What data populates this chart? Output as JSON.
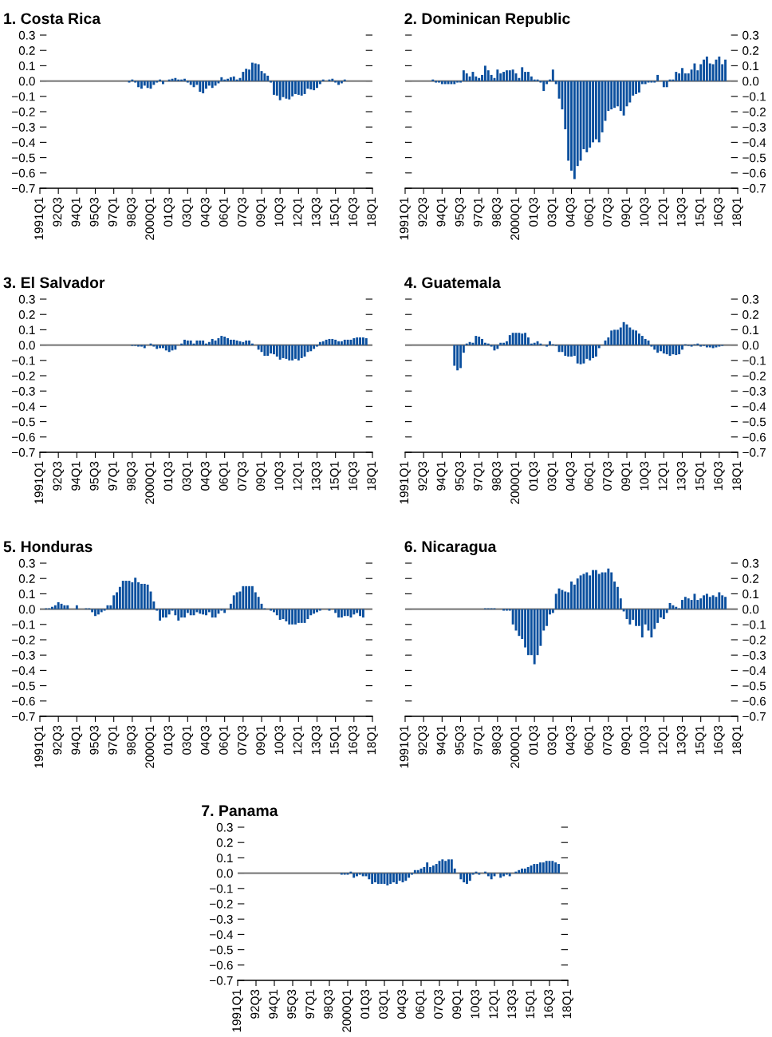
{
  "chart_data": [
    {
      "type": "bar",
      "title": "1. Costa Rica",
      "categories": [
        "1991Q1",
        null,
        null,
        null,
        null,
        null,
        "92Q3",
        null,
        null,
        null,
        null,
        null,
        "94Q1",
        null,
        null,
        null,
        null,
        null,
        "95Q3",
        null,
        null,
        null,
        null,
        null,
        "97Q1",
        null,
        null,
        null,
        null,
        null,
        "98Q3",
        null,
        null,
        null,
        null,
        null,
        "2000Q1",
        null,
        null,
        null,
        null,
        null,
        "01Q3",
        null,
        null,
        null,
        null,
        null,
        "03Q1",
        null,
        null,
        null,
        null,
        null,
        "04Q3",
        null,
        null,
        null,
        null,
        null,
        "06Q1",
        null,
        null,
        null,
        null,
        null,
        "07Q3",
        null,
        null,
        null,
        null,
        null,
        "09Q1",
        null,
        null,
        null,
        null,
        null,
        "10Q3",
        null,
        null,
        null,
        null,
        null,
        "12Q1",
        null,
        null,
        null,
        null,
        null,
        "13Q3",
        null,
        null,
        null,
        null,
        null,
        "15Q1",
        null,
        null,
        null,
        null,
        null,
        "16Q3",
        null,
        null,
        null,
        null,
        null,
        "18Q1"
      ],
      "series": [
        {
          "color": "#0a4f9e",
          "values": [
            null,
            null,
            null,
            null,
            null,
            null,
            null,
            null,
            null,
            null,
            null,
            null,
            null,
            null,
            null,
            null,
            null,
            null,
            null,
            null,
            null,
            null,
            null,
            null,
            null,
            null,
            null,
            null,
            null,
            -0.01,
            0.01,
            -0.01,
            -0.04,
            -0.05,
            -0.03,
            -0.045,
            -0.05,
            -0.025,
            -0.01,
            0.01,
            -0.02,
            0.0,
            0.01,
            0.015,
            0.02,
            0.01,
            0.01,
            0.015,
            -0.01,
            -0.025,
            -0.04,
            -0.025,
            -0.07,
            -0.08,
            -0.05,
            -0.03,
            -0.045,
            -0.03,
            -0.015,
            0.025,
            0.01,
            0.015,
            0.025,
            0.03,
            0.01,
            0.02,
            0.06,
            0.08,
            0.075,
            0.12,
            0.115,
            0.11,
            0.065,
            0.05,
            0.035,
            -0.01,
            -0.09,
            -0.095,
            -0.125,
            -0.105,
            -0.115,
            -0.12,
            -0.1,
            -0.085,
            -0.09,
            -0.095,
            -0.085,
            -0.05,
            -0.055,
            -0.06,
            -0.045,
            -0.02,
            0.01,
            0.0,
            0.01,
            0.015,
            -0.01,
            -0.025,
            -0.015,
            0.01,
            null,
            null,
            null,
            null,
            null,
            null,
            null,
            null,
            null
          ]
        }
      ],
      "ylim": [
        -0.7,
        0.3
      ],
      "yticks": [
        {
          "value": 0.3,
          "label": "0.3"
        },
        {
          "value": 0.2,
          "label": "0.2"
        },
        {
          "value": 0.1,
          "label": "0.1"
        },
        {
          "value": 0.0,
          "label": "0.0"
        },
        {
          "value": -0.1,
          "label": "−0.1"
        },
        {
          "value": -0.2,
          "label": "−0.2"
        },
        {
          "value": -0.3,
          "label": "−0.3"
        },
        {
          "value": -0.4,
          "label": "−0.4"
        },
        {
          "value": -0.5,
          "label": "−0.5"
        },
        {
          "value": -0.6,
          "label": "−0.6"
        },
        {
          "value": -0.7,
          "label": "−0.7"
        }
      ],
      "ref_lines": [
        {
          "axis": "y",
          "value": 0,
          "color": "#808080"
        }
      ]
    },
    {
      "type": "bar",
      "title": "2. Dominican Republic",
      "categories": [
        "1991Q1",
        null,
        null,
        null,
        null,
        null,
        "92Q3",
        null,
        null,
        null,
        null,
        null,
        "94Q1",
        null,
        null,
        null,
        null,
        null,
        "95Q3",
        null,
        null,
        null,
        null,
        null,
        "97Q1",
        null,
        null,
        null,
        null,
        null,
        "98Q3",
        null,
        null,
        null,
        null,
        null,
        "2000Q1",
        null,
        null,
        null,
        null,
        null,
        "01Q3",
        null,
        null,
        null,
        null,
        null,
        "03Q1",
        null,
        null,
        null,
        null,
        null,
        "04Q3",
        null,
        null,
        null,
        null,
        null,
        "06Q1",
        null,
        null,
        null,
        null,
        null,
        "07Q3",
        null,
        null,
        null,
        null,
        null,
        "09Q1",
        null,
        null,
        null,
        null,
        null,
        "10Q3",
        null,
        null,
        null,
        null,
        null,
        "12Q1",
        null,
        null,
        null,
        null,
        null,
        "13Q3",
        null,
        null,
        null,
        null,
        null,
        "15Q1",
        null,
        null,
        null,
        null,
        null,
        "16Q3",
        null,
        null,
        null,
        null,
        null,
        "18Q1"
      ],
      "series": [
        {
          "color": "#0a4f9e",
          "axis": "y2",
          "values": [
            null,
            null,
            null,
            null,
            null,
            null,
            null,
            null,
            null,
            0.01,
            -0.01,
            -0.01,
            -0.02,
            -0.02,
            -0.02,
            -0.02,
            -0.02,
            -0.01,
            -0.01,
            0.07,
            0.05,
            0.03,
            0.06,
            0.03,
            0.02,
            0.04,
            0.1,
            0.07,
            0.04,
            0.02,
            0.075,
            0.05,
            0.06,
            0.07,
            0.07,
            0.075,
            0.05,
            0.02,
            0.09,
            0.06,
            0.06,
            0.03,
            0.01,
            0.01,
            -0.01,
            -0.065,
            -0.02,
            0.01,
            0.075,
            -0.02,
            -0.115,
            -0.185,
            -0.315,
            -0.52,
            -0.585,
            -0.64,
            -0.555,
            -0.52,
            -0.445,
            -0.465,
            -0.435,
            -0.4,
            -0.38,
            -0.4,
            -0.335,
            -0.26,
            -0.195,
            -0.185,
            -0.175,
            -0.165,
            -0.195,
            -0.225,
            -0.165,
            -0.14,
            -0.095,
            -0.085,
            -0.075,
            -0.02,
            -0.02,
            -0.01,
            -0.01,
            -0.01,
            0.04,
            0.0,
            -0.04,
            -0.04,
            0.01,
            0.01,
            0.06,
            0.05,
            0.085,
            0.05,
            0.05,
            0.075,
            0.115,
            0.07,
            0.11,
            0.14,
            0.16,
            0.115,
            0.11,
            0.14,
            0.16,
            0.11,
            0.14,
            null,
            null,
            null,
            null
          ]
        }
      ],
      "y2lim": [
        -0.7,
        0.3
      ],
      "y2ticks": [
        {
          "value": 0.3,
          "label": "0.3"
        },
        {
          "value": 0.2,
          "label": "0.2"
        },
        {
          "value": 0.1,
          "label": "0.1"
        },
        {
          "value": 0.0,
          "label": "0.0"
        },
        {
          "value": -0.1,
          "label": "−0.1"
        },
        {
          "value": -0.2,
          "label": "−0.2"
        },
        {
          "value": -0.3,
          "label": "−0.3"
        },
        {
          "value": -0.4,
          "label": "−0.4"
        },
        {
          "value": -0.5,
          "label": "−0.5"
        },
        {
          "value": -0.6,
          "label": "−0.6"
        },
        {
          "value": -0.7,
          "label": "−0.7"
        }
      ],
      "ref_lines": [
        {
          "axis": "y2",
          "value": 0,
          "color": "#808080"
        }
      ]
    },
    {
      "type": "bar",
      "title": "3. El Salvador",
      "categories": [
        "1991Q1",
        null,
        null,
        null,
        null,
        null,
        "92Q3",
        null,
        null,
        null,
        null,
        null,
        "94Q1",
        null,
        null,
        null,
        null,
        null,
        "95Q3",
        null,
        null,
        null,
        null,
        null,
        "97Q1",
        null,
        null,
        null,
        null,
        null,
        "98Q3",
        null,
        null,
        null,
        null,
        null,
        "2000Q1",
        null,
        null,
        null,
        null,
        null,
        "01Q3",
        null,
        null,
        null,
        null,
        null,
        "03Q1",
        null,
        null,
        null,
        null,
        null,
        "04Q3",
        null,
        null,
        null,
        null,
        null,
        "06Q1",
        null,
        null,
        null,
        null,
        null,
        "07Q3",
        null,
        null,
        null,
        null,
        null,
        "09Q1",
        null,
        null,
        null,
        null,
        null,
        "10Q3",
        null,
        null,
        null,
        null,
        null,
        "12Q1",
        null,
        null,
        null,
        null,
        null,
        "13Q3",
        null,
        null,
        null,
        null,
        null,
        "15Q1",
        null,
        null,
        null,
        null,
        null,
        "16Q3",
        null,
        null,
        null,
        null,
        null,
        "18Q1"
      ],
      "series": [
        {
          "color": "#0a4f9e",
          "values": [
            null,
            null,
            null,
            null,
            null,
            null,
            null,
            null,
            null,
            null,
            null,
            null,
            null,
            null,
            null,
            null,
            null,
            null,
            null,
            null,
            null,
            null,
            null,
            null,
            null,
            null,
            null,
            null,
            null,
            null,
            -0.005,
            -0.005,
            -0.01,
            -0.01,
            -0.02,
            0.0,
            0.01,
            -0.01,
            -0.025,
            -0.02,
            -0.02,
            -0.035,
            -0.045,
            -0.035,
            -0.03,
            0.0,
            0.01,
            0.035,
            0.03,
            0.03,
            0.01,
            0.03,
            0.03,
            0.03,
            0.01,
            0.02,
            0.04,
            0.03,
            0.045,
            0.06,
            0.055,
            0.045,
            0.035,
            0.035,
            0.03,
            0.025,
            0.02,
            0.03,
            0.03,
            0.01,
            0.0,
            -0.03,
            -0.045,
            -0.07,
            -0.07,
            -0.055,
            -0.06,
            -0.075,
            -0.095,
            -0.085,
            -0.09,
            -0.1,
            -0.1,
            -0.09,
            -0.1,
            -0.085,
            -0.075,
            -0.045,
            -0.04,
            -0.025,
            -0.01,
            0.02,
            0.025,
            0.035,
            0.04,
            0.04,
            0.035,
            0.025,
            0.025,
            0.035,
            0.035,
            0.035,
            0.045,
            0.05,
            0.05,
            0.05,
            0.045,
            null,
            null
          ]
        }
      ],
      "ylim": [
        -0.7,
        0.3
      ],
      "yticks": [
        {
          "value": 0.3,
          "label": "0.3"
        },
        {
          "value": 0.2,
          "label": "0.2"
        },
        {
          "value": 0.1,
          "label": "0.1"
        },
        {
          "value": 0.0,
          "label": "0.0"
        },
        {
          "value": -0.1,
          "label": "−0.1"
        },
        {
          "value": -0.2,
          "label": "−0.2"
        },
        {
          "value": -0.3,
          "label": "−0.3"
        },
        {
          "value": -0.4,
          "label": "−0.4"
        },
        {
          "value": -0.5,
          "label": "−0.5"
        },
        {
          "value": -0.6,
          "label": "−0.6"
        },
        {
          "value": -0.7,
          "label": "−0.7"
        }
      ],
      "ref_lines": [
        {
          "axis": "y",
          "value": 0,
          "color": "#808080"
        }
      ]
    },
    {
      "type": "bar",
      "title": "4. Guatemala",
      "categories": [
        "1991Q1",
        null,
        null,
        null,
        null,
        null,
        "92Q3",
        null,
        null,
        null,
        null,
        null,
        "94Q1",
        null,
        null,
        null,
        null,
        null,
        "95Q3",
        null,
        null,
        null,
        null,
        null,
        "97Q1",
        null,
        null,
        null,
        null,
        null,
        "98Q3",
        null,
        null,
        null,
        null,
        null,
        "2000Q1",
        null,
        null,
        null,
        null,
        null,
        "01Q3",
        null,
        null,
        null,
        null,
        null,
        "03Q1",
        null,
        null,
        null,
        null,
        null,
        "04Q3",
        null,
        null,
        null,
        null,
        null,
        "06Q1",
        null,
        null,
        null,
        null,
        null,
        "07Q3",
        null,
        null,
        null,
        null,
        null,
        "09Q1",
        null,
        null,
        null,
        null,
        null,
        "10Q3",
        null,
        null,
        null,
        null,
        null,
        "12Q1",
        null,
        null,
        null,
        null,
        null,
        "13Q3",
        null,
        null,
        null,
        null,
        null,
        "15Q1",
        null,
        null,
        null,
        null,
        null,
        "16Q3",
        null,
        null,
        null,
        null,
        null,
        "18Q1"
      ],
      "series": [
        {
          "color": "#0a4f9e",
          "axis": "y2",
          "values": [
            null,
            null,
            null,
            null,
            null,
            null,
            null,
            null,
            null,
            null,
            null,
            null,
            null,
            null,
            null,
            null,
            -0.135,
            -0.165,
            -0.15,
            -0.05,
            0.01,
            0.02,
            0.015,
            0.06,
            0.055,
            0.04,
            0.015,
            0.01,
            -0.01,
            -0.035,
            -0.025,
            0.015,
            0.015,
            0.025,
            0.065,
            0.08,
            0.08,
            0.08,
            0.075,
            0.08,
            0.05,
            0.01,
            0.015,
            0.025,
            0.01,
            0.0,
            -0.01,
            0.025,
            0.005,
            -0.005,
            -0.045,
            -0.045,
            -0.07,
            -0.075,
            -0.075,
            -0.07,
            -0.12,
            -0.125,
            -0.12,
            -0.09,
            -0.1,
            -0.085,
            -0.075,
            -0.02,
            0.0,
            0.03,
            0.05,
            0.095,
            0.1,
            0.1,
            0.115,
            0.15,
            0.135,
            0.115,
            0.1,
            0.095,
            0.075,
            0.06,
            0.04,
            0.03,
            -0.01,
            -0.03,
            -0.05,
            -0.04,
            -0.055,
            -0.06,
            -0.07,
            -0.06,
            -0.065,
            -0.06,
            -0.03,
            0.005,
            -0.005,
            -0.01,
            0.005,
            0.01,
            -0.01,
            -0.005,
            -0.015,
            -0.015,
            -0.02,
            -0.015,
            -0.01,
            -0.005,
            null,
            null,
            null,
            null,
            null
          ]
        }
      ],
      "y2lim": [
        -0.7,
        0.3
      ],
      "y2ticks": [
        {
          "value": 0.3,
          "label": "0.3"
        },
        {
          "value": 0.2,
          "label": "0.2"
        },
        {
          "value": 0.1,
          "label": "0.1"
        },
        {
          "value": 0.0,
          "label": "0.0"
        },
        {
          "value": -0.1,
          "label": "−0.1"
        },
        {
          "value": -0.2,
          "label": "−0.2"
        },
        {
          "value": -0.3,
          "label": "−0.3"
        },
        {
          "value": -0.4,
          "label": "−0.4"
        },
        {
          "value": -0.5,
          "label": "−0.5"
        },
        {
          "value": -0.6,
          "label": "−0.6"
        },
        {
          "value": -0.7,
          "label": "−0.7"
        }
      ],
      "ref_lines": [
        {
          "axis": "y2",
          "value": 0,
          "color": "#808080"
        }
      ]
    },
    {
      "type": "bar",
      "title": "5. Honduras",
      "categories": [
        "1991Q1",
        null,
        null,
        null,
        null,
        null,
        "92Q3",
        null,
        null,
        null,
        null,
        null,
        "94Q1",
        null,
        null,
        null,
        null,
        null,
        "95Q3",
        null,
        null,
        null,
        null,
        null,
        "97Q1",
        null,
        null,
        null,
        null,
        null,
        "98Q3",
        null,
        null,
        null,
        null,
        null,
        "2000Q1",
        null,
        null,
        null,
        null,
        null,
        "01Q3",
        null,
        null,
        null,
        null,
        null,
        "03Q1",
        null,
        null,
        null,
        null,
        null,
        "04Q3",
        null,
        null,
        null,
        null,
        null,
        "06Q1",
        null,
        null,
        null,
        null,
        null,
        "07Q3",
        null,
        null,
        null,
        null,
        null,
        "09Q1",
        null,
        null,
        null,
        null,
        null,
        "10Q3",
        null,
        null,
        null,
        null,
        null,
        "12Q1",
        null,
        null,
        null,
        null,
        null,
        "13Q3",
        null,
        null,
        null,
        null,
        null,
        "15Q1",
        null,
        null,
        null,
        null,
        null,
        "16Q3",
        null,
        null,
        null,
        null,
        null,
        "18Q1"
      ],
      "series": [
        {
          "color": "#0a4f9e",
          "values": [
            null,
            null,
            0.005,
            0.005,
            0.015,
            0.025,
            0.045,
            0.035,
            0.025,
            0.025,
            0.0,
            0.0,
            0.025,
            0.0,
            0.0,
            0.005,
            0.005,
            -0.02,
            -0.045,
            -0.035,
            -0.02,
            -0.01,
            0.025,
            0.025,
            0.09,
            0.11,
            0.145,
            0.185,
            0.185,
            0.185,
            0.175,
            0.205,
            0.175,
            0.165,
            0.165,
            0.16,
            0.115,
            0.05,
            -0.01,
            -0.075,
            -0.055,
            -0.055,
            -0.035,
            -0.01,
            -0.04,
            -0.075,
            -0.055,
            -0.055,
            -0.025,
            -0.04,
            -0.04,
            -0.02,
            -0.03,
            -0.035,
            -0.04,
            -0.02,
            -0.055,
            -0.055,
            -0.03,
            -0.01,
            -0.025,
            0.0,
            0.035,
            0.09,
            0.11,
            0.115,
            0.15,
            0.15,
            0.15,
            0.15,
            0.11,
            0.08,
            0.035,
            0.005,
            0.0,
            -0.01,
            -0.02,
            -0.04,
            -0.07,
            -0.065,
            -0.08,
            -0.1,
            -0.1,
            -0.1,
            -0.09,
            -0.09,
            -0.09,
            -0.065,
            -0.04,
            -0.03,
            -0.02,
            -0.01,
            0.0,
            0.0,
            -0.01,
            0.0,
            -0.025,
            -0.055,
            -0.055,
            -0.045,
            -0.045,
            -0.055,
            -0.035,
            -0.025,
            -0.045,
            -0.055,
            null,
            null,
            null
          ]
        }
      ],
      "ylim": [
        -0.7,
        0.3
      ],
      "yticks": [
        {
          "value": 0.3,
          "label": "0.3"
        },
        {
          "value": 0.2,
          "label": "0.2"
        },
        {
          "value": 0.1,
          "label": "0.1"
        },
        {
          "value": 0.0,
          "label": "0.0"
        },
        {
          "value": -0.1,
          "label": "−0.1"
        },
        {
          "value": -0.2,
          "label": "−0.2"
        },
        {
          "value": -0.3,
          "label": "−0.3"
        },
        {
          "value": -0.4,
          "label": "−0.4"
        },
        {
          "value": -0.5,
          "label": "−0.5"
        },
        {
          "value": -0.6,
          "label": "−0.6"
        },
        {
          "value": -0.7,
          "label": "−0.7"
        }
      ],
      "ref_lines": [
        {
          "axis": "y",
          "value": 0,
          "color": "#808080"
        }
      ]
    },
    {
      "type": "bar",
      "title": "6. Nicaragua",
      "categories": [
        "1991Q1",
        null,
        null,
        null,
        null,
        null,
        "92Q3",
        null,
        null,
        null,
        null,
        null,
        "94Q1",
        null,
        null,
        null,
        null,
        null,
        "95Q3",
        null,
        null,
        null,
        null,
        null,
        "97Q1",
        null,
        null,
        null,
        null,
        null,
        "98Q3",
        null,
        null,
        null,
        null,
        null,
        "2000Q1",
        null,
        null,
        null,
        null,
        null,
        "01Q3",
        null,
        null,
        null,
        null,
        null,
        "03Q1",
        null,
        null,
        null,
        null,
        null,
        "04Q3",
        null,
        null,
        null,
        null,
        null,
        "06Q1",
        null,
        null,
        null,
        null,
        null,
        "07Q3",
        null,
        null,
        null,
        null,
        null,
        "09Q1",
        null,
        null,
        null,
        null,
        null,
        "10Q3",
        null,
        null,
        null,
        null,
        null,
        "12Q1",
        null,
        null,
        null,
        null,
        null,
        "13Q3",
        null,
        null,
        null,
        null,
        null,
        "15Q1",
        null,
        null,
        null,
        null,
        null,
        "16Q3",
        null,
        null,
        null,
        null,
        null,
        "18Q1"
      ],
      "series": [
        {
          "color": "#0a4f9e",
          "axis": "y2",
          "values": [
            null,
            null,
            null,
            null,
            null,
            null,
            null,
            null,
            null,
            null,
            null,
            null,
            null,
            null,
            null,
            null,
            null,
            null,
            null,
            null,
            null,
            null,
            null,
            null,
            null,
            null,
            0.005,
            0.005,
            0.005,
            0.005,
            0.0,
            0.0,
            -0.01,
            -0.01,
            -0.01,
            -0.1,
            -0.14,
            -0.175,
            -0.195,
            -0.25,
            -0.3,
            -0.3,
            -0.36,
            -0.3,
            -0.24,
            -0.14,
            -0.11,
            -0.035,
            -0.025,
            0.1,
            0.135,
            0.125,
            0.115,
            0.11,
            0.18,
            0.16,
            0.2,
            0.22,
            0.23,
            0.24,
            0.22,
            0.255,
            0.255,
            0.23,
            0.24,
            0.24,
            0.265,
            0.24,
            0.18,
            0.145,
            0.07,
            -0.015,
            -0.065,
            -0.1,
            -0.07,
            -0.11,
            -0.11,
            -0.185,
            -0.1,
            -0.14,
            -0.185,
            -0.13,
            -0.09,
            -0.055,
            -0.065,
            -0.025,
            0.04,
            0.025,
            0.015,
            0.005,
            0.06,
            0.08,
            0.07,
            0.06,
            0.1,
            0.06,
            0.07,
            0.09,
            0.1,
            0.08,
            0.09,
            0.08,
            0.11,
            0.09,
            0.08,
            null,
            null,
            null,
            null
          ]
        }
      ],
      "y2lim": [
        -0.7,
        0.3
      ],
      "y2ticks": [
        {
          "value": 0.3,
          "label": "0.3"
        },
        {
          "value": 0.2,
          "label": "0.2"
        },
        {
          "value": 0.1,
          "label": "0.1"
        },
        {
          "value": 0.0,
          "label": "0.0"
        },
        {
          "value": -0.1,
          "label": "−0.1"
        },
        {
          "value": -0.2,
          "label": "−0.2"
        },
        {
          "value": -0.3,
          "label": "−0.3"
        },
        {
          "value": -0.4,
          "label": "−0.4"
        },
        {
          "value": -0.5,
          "label": "−0.5"
        },
        {
          "value": -0.6,
          "label": "−0.6"
        },
        {
          "value": -0.7,
          "label": "−0.7"
        }
      ],
      "ref_lines": [
        {
          "axis": "y2",
          "value": 0,
          "color": "#808080"
        }
      ]
    },
    {
      "type": "bar",
      "title": "7. Panama",
      "categories": [
        "1991Q1",
        null,
        null,
        null,
        null,
        null,
        "92Q3",
        null,
        null,
        null,
        null,
        null,
        "94Q1",
        null,
        null,
        null,
        null,
        null,
        "95Q3",
        null,
        null,
        null,
        null,
        null,
        "97Q1",
        null,
        null,
        null,
        null,
        null,
        "98Q3",
        null,
        null,
        null,
        null,
        null,
        "2000Q1",
        null,
        null,
        null,
        null,
        null,
        "01Q3",
        null,
        null,
        null,
        null,
        null,
        "03Q1",
        null,
        null,
        null,
        null,
        null,
        "04Q3",
        null,
        null,
        null,
        null,
        null,
        "06Q1",
        null,
        null,
        null,
        null,
        null,
        "07Q3",
        null,
        null,
        null,
        null,
        null,
        "09Q1",
        null,
        null,
        null,
        null,
        null,
        "10Q3",
        null,
        null,
        null,
        null,
        null,
        "12Q1",
        null,
        null,
        null,
        null,
        null,
        "13Q3",
        null,
        null,
        null,
        null,
        null,
        "15Q1",
        null,
        null,
        null,
        null,
        null,
        "16Q3",
        null,
        null,
        null,
        null,
        null,
        "18Q1"
      ],
      "series": [
        {
          "color": "#0a4f9e",
          "values": [
            null,
            null,
            null,
            null,
            null,
            null,
            null,
            null,
            null,
            null,
            null,
            null,
            null,
            null,
            null,
            null,
            null,
            null,
            null,
            null,
            null,
            null,
            null,
            null,
            null,
            null,
            null,
            null,
            null,
            null,
            null,
            null,
            null,
            null,
            -0.01,
            -0.01,
            -0.01,
            0.01,
            -0.03,
            -0.02,
            -0.01,
            -0.02,
            -0.02,
            -0.04,
            -0.07,
            -0.06,
            -0.07,
            -0.07,
            -0.07,
            -0.08,
            -0.07,
            -0.06,
            -0.07,
            -0.05,
            -0.06,
            -0.05,
            -0.03,
            -0.01,
            0.02,
            0.02,
            0.03,
            0.04,
            0.07,
            0.04,
            0.05,
            0.06,
            0.08,
            0.09,
            0.08,
            0.09,
            0.09,
            0.03,
            0.0,
            -0.04,
            -0.06,
            -0.07,
            -0.05,
            -0.01,
            0.01,
            -0.01,
            0.0,
            0.01,
            -0.02,
            -0.04,
            -0.02,
            0.0,
            -0.03,
            -0.02,
            -0.01,
            -0.02,
            0.0,
            0.01,
            0.02,
            0.03,
            0.03,
            0.04,
            0.05,
            0.06,
            0.06,
            0.07,
            0.07,
            0.08,
            0.08,
            0.08,
            0.07,
            0.06,
            null,
            null,
            null
          ]
        }
      ],
      "ylim": [
        -0.7,
        0.3
      ],
      "yticks": [
        {
          "value": 0.3,
          "label": "0.3"
        },
        {
          "value": 0.2,
          "label": "0.2"
        },
        {
          "value": 0.1,
          "label": "0.1"
        },
        {
          "value": 0.0,
          "label": "0.0"
        },
        {
          "value": -0.1,
          "label": "−0.1"
        },
        {
          "value": -0.2,
          "label": "−0.2"
        },
        {
          "value": -0.3,
          "label": "−0.3"
        },
        {
          "value": -0.4,
          "label": "−0.4"
        },
        {
          "value": -0.5,
          "label": "−0.5"
        },
        {
          "value": -0.6,
          "label": "−0.6"
        },
        {
          "value": -0.7,
          "label": "−0.7"
        }
      ],
      "ref_lines": [
        {
          "axis": "y",
          "value": 0,
          "color": "#808080"
        }
      ]
    }
  ]
}
